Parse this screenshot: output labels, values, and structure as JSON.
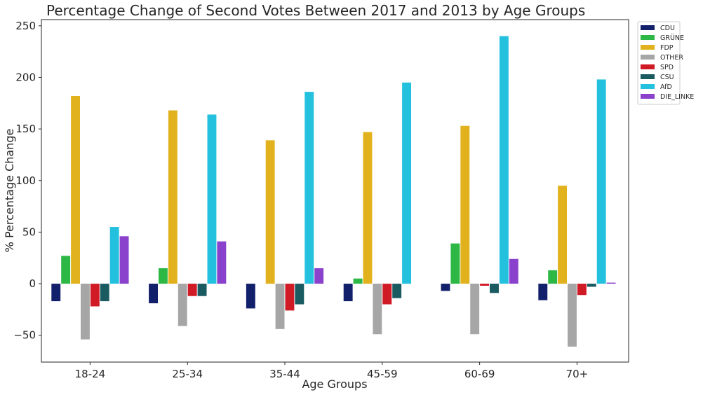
{
  "chart_data": {
    "type": "bar",
    "title": "Percentage Change of Second Votes Between 2017 and 2013 by Age Groups",
    "xlabel": "Age Groups",
    "ylabel": "% Percentage Change",
    "ylim": [
      -76,
      256
    ],
    "yticks": [
      -50,
      0,
      50,
      100,
      150,
      200,
      250
    ],
    "grid": false,
    "legend_position": "outside-top-right",
    "categories": [
      "18-24",
      "25-34",
      "35-44",
      "45-59",
      "60-69",
      "70+"
    ],
    "series": [
      {
        "name": "CDU",
        "color": "#12206b",
        "values": [
          -17,
          -19,
          -24,
          -17,
          -7,
          -16
        ]
      },
      {
        "name": "GRÜNE",
        "color": "#2db745",
        "values": [
          27,
          15,
          0,
          5,
          39,
          13
        ]
      },
      {
        "name": "FDP",
        "color": "#e2b21e",
        "values": [
          182,
          168,
          139,
          147,
          153,
          95
        ]
      },
      {
        "name": "OTHER",
        "color": "#a6a6a6",
        "values": [
          -54,
          -41,
          -44,
          -49,
          -49,
          -61
        ]
      },
      {
        "name": "SPD",
        "color": "#d01a26",
        "values": [
          -22,
          -12,
          -26,
          -20,
          -2,
          -11
        ]
      },
      {
        "name": "CSU",
        "color": "#1a5a61",
        "values": [
          -17,
          -12,
          -20,
          -14,
          -9,
          -3
        ]
      },
      {
        "name": "AfD",
        "color": "#23c1de",
        "values": [
          55,
          164,
          186,
          195,
          240,
          198
        ]
      },
      {
        "name": "DIE_LINKE",
        "color": "#8a42cc",
        "values": [
          46,
          41,
          15,
          0,
          24,
          1
        ]
      }
    ]
  }
}
